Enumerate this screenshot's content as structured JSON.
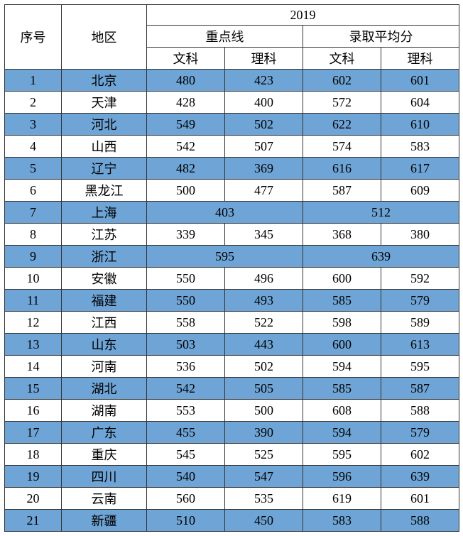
{
  "header": {
    "seq": "序号",
    "region": "地区",
    "year": "2019",
    "key_line": "重点线",
    "avg_score": "录取平均分",
    "wen": "文科",
    "li": "理科"
  },
  "style": {
    "odd_row_color": "#6ea4d6",
    "even_row_color": "#ffffff",
    "border_color": "#333333",
    "font_size": 18
  },
  "rows": [
    {
      "seq": "1",
      "region": "北京",
      "merged": false,
      "kl_wen": "480",
      "kl_li": "423",
      "av_wen": "602",
      "av_li": "601"
    },
    {
      "seq": "2",
      "region": "天津",
      "merged": false,
      "kl_wen": "428",
      "kl_li": "400",
      "av_wen": "572",
      "av_li": "604"
    },
    {
      "seq": "3",
      "region": "河北",
      "merged": false,
      "kl_wen": "549",
      "kl_li": "502",
      "av_wen": "622",
      "av_li": "610"
    },
    {
      "seq": "4",
      "region": "山西",
      "merged": false,
      "kl_wen": "542",
      "kl_li": "507",
      "av_wen": "574",
      "av_li": "583"
    },
    {
      "seq": "5",
      "region": "辽宁",
      "merged": false,
      "kl_wen": "482",
      "kl_li": "369",
      "av_wen": "616",
      "av_li": "617"
    },
    {
      "seq": "6",
      "region": "黑龙江",
      "merged": false,
      "kl_wen": "500",
      "kl_li": "477",
      "av_wen": "587",
      "av_li": "609"
    },
    {
      "seq": "7",
      "region": "上海",
      "merged": true,
      "kl": "403",
      "av": "512"
    },
    {
      "seq": "8",
      "region": "江苏",
      "merged": false,
      "kl_wen": "339",
      "kl_li": "345",
      "av_wen": "368",
      "av_li": "380"
    },
    {
      "seq": "9",
      "region": "浙江",
      "merged": true,
      "kl": "595",
      "av": "639"
    },
    {
      "seq": "10",
      "region": "安徽",
      "merged": false,
      "kl_wen": "550",
      "kl_li": "496",
      "av_wen": "600",
      "av_li": "592"
    },
    {
      "seq": "11",
      "region": "福建",
      "merged": false,
      "kl_wen": "550",
      "kl_li": "493",
      "av_wen": "585",
      "av_li": "579"
    },
    {
      "seq": "12",
      "region": "江西",
      "merged": false,
      "kl_wen": "558",
      "kl_li": "522",
      "av_wen": "598",
      "av_li": "589"
    },
    {
      "seq": "13",
      "region": "山东",
      "merged": false,
      "kl_wen": "503",
      "kl_li": "443",
      "av_wen": "600",
      "av_li": "613"
    },
    {
      "seq": "14",
      "region": "河南",
      "merged": false,
      "kl_wen": "536",
      "kl_li": "502",
      "av_wen": "594",
      "av_li": "595"
    },
    {
      "seq": "15",
      "region": "湖北",
      "merged": false,
      "kl_wen": "542",
      "kl_li": "505",
      "av_wen": "585",
      "av_li": "587"
    },
    {
      "seq": "16",
      "region": "湖南",
      "merged": false,
      "kl_wen": "553",
      "kl_li": "500",
      "av_wen": "608",
      "av_li": "588"
    },
    {
      "seq": "17",
      "region": "广东",
      "merged": false,
      "kl_wen": "455",
      "kl_li": "390",
      "av_wen": "594",
      "av_li": "579"
    },
    {
      "seq": "18",
      "region": "重庆",
      "merged": false,
      "kl_wen": "545",
      "kl_li": "525",
      "av_wen": "595",
      "av_li": "602"
    },
    {
      "seq": "19",
      "region": "四川",
      "merged": false,
      "kl_wen": "540",
      "kl_li": "547",
      "av_wen": "596",
      "av_li": "639"
    },
    {
      "seq": "20",
      "region": "云南",
      "merged": false,
      "kl_wen": "560",
      "kl_li": "535",
      "av_wen": "619",
      "av_li": "601"
    },
    {
      "seq": "21",
      "region": "新疆",
      "merged": false,
      "kl_wen": "510",
      "kl_li": "450",
      "av_wen": "583",
      "av_li": "588"
    }
  ]
}
